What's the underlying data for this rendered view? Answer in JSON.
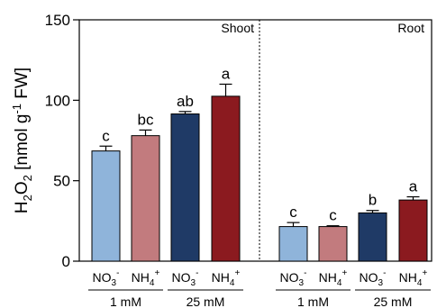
{
  "chart_data": {
    "type": "bar",
    "ylabel": {
      "main": "H",
      "sub1": "2",
      "mid": "O",
      "sub2": "2",
      "rest1": " [nmol g",
      "sup": "-1",
      "rest2": " FW]"
    },
    "ylim": [
      0,
      150
    ],
    "yticks": [
      0,
      50,
      100,
      150
    ],
    "panels": [
      {
        "name": "Shoot",
        "categories": [
          "NO3- 1 mM",
          "NH4+ 1 mM",
          "NO3- 25 mM",
          "NH4+ 25 mM"
        ],
        "values": [
          68.5,
          78,
          91.5,
          102.5
        ],
        "errors": [
          3,
          3.5,
          1.5,
          7.5
        ],
        "letters": [
          "c",
          "bc",
          "ab",
          "a"
        ]
      },
      {
        "name": "Root",
        "categories": [
          "NO3- 1 mM",
          "NH4+ 1 mM",
          "NO3- 25 mM",
          "NH4+ 25 mM"
        ],
        "values": [
          21.5,
          21.5,
          30,
          38
        ],
        "errors": [
          2.5,
          0.5,
          1.5,
          2
        ],
        "letters": [
          "c",
          "c",
          "b",
          "a"
        ]
      }
    ],
    "xticklabels": [
      {
        "base": "NO",
        "sub": "3",
        "sup": "-"
      },
      {
        "base": "NH",
        "sub": "4",
        "sup": "+"
      },
      {
        "base": "NO",
        "sub": "3",
        "sup": "-"
      },
      {
        "base": "NH",
        "sub": "4",
        "sup": "+"
      }
    ],
    "groups": [
      "1 mM",
      "25 mM"
    ],
    "colors": [
      "#8fb4da",
      "#c27b7e",
      "#1f3a66",
      "#8b1a1f"
    ]
  }
}
